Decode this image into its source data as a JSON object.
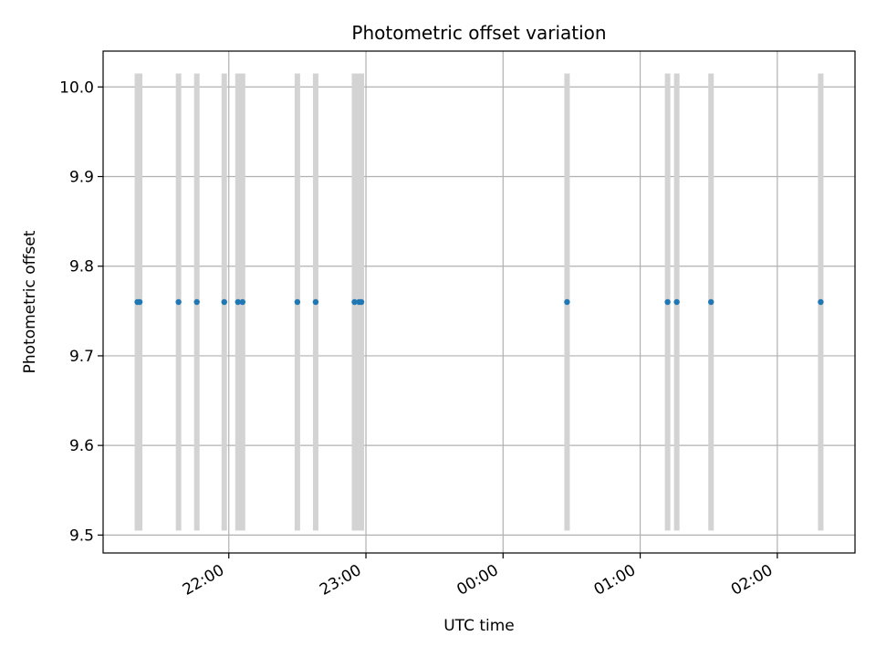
{
  "chart_data": {
    "type": "scatter",
    "title": "Photometric offset variation",
    "xlabel": "UTC time",
    "ylabel": "Photometric offset",
    "xlim": [
      "21:05",
      "02:34"
    ],
    "ylim": [
      9.48,
      10.04
    ],
    "grid": true,
    "x_ticks": [
      "22:00",
      "23:00",
      "00:00",
      "01:00",
      "02:00"
    ],
    "y_ticks": [
      9.5,
      9.6,
      9.7,
      9.8,
      9.9,
      10.0
    ],
    "point_color": "#1f77b4",
    "band_color": "#d3d3d3",
    "band_range": [
      9.505,
      10.015
    ],
    "x": [
      "21:20",
      "21:21",
      "21:38",
      "21:46",
      "21:58",
      "22:04",
      "22:06",
      "22:30",
      "22:38",
      "22:55",
      "22:57",
      "22:58",
      "00:28",
      "01:12",
      "01:16",
      "01:31",
      "02:19"
    ],
    "y": [
      9.76,
      9.76,
      9.76,
      9.76,
      9.76,
      9.76,
      9.76,
      9.76,
      9.76,
      9.76,
      9.76,
      9.76,
      9.76,
      9.76,
      9.76,
      9.76,
      9.76
    ]
  }
}
